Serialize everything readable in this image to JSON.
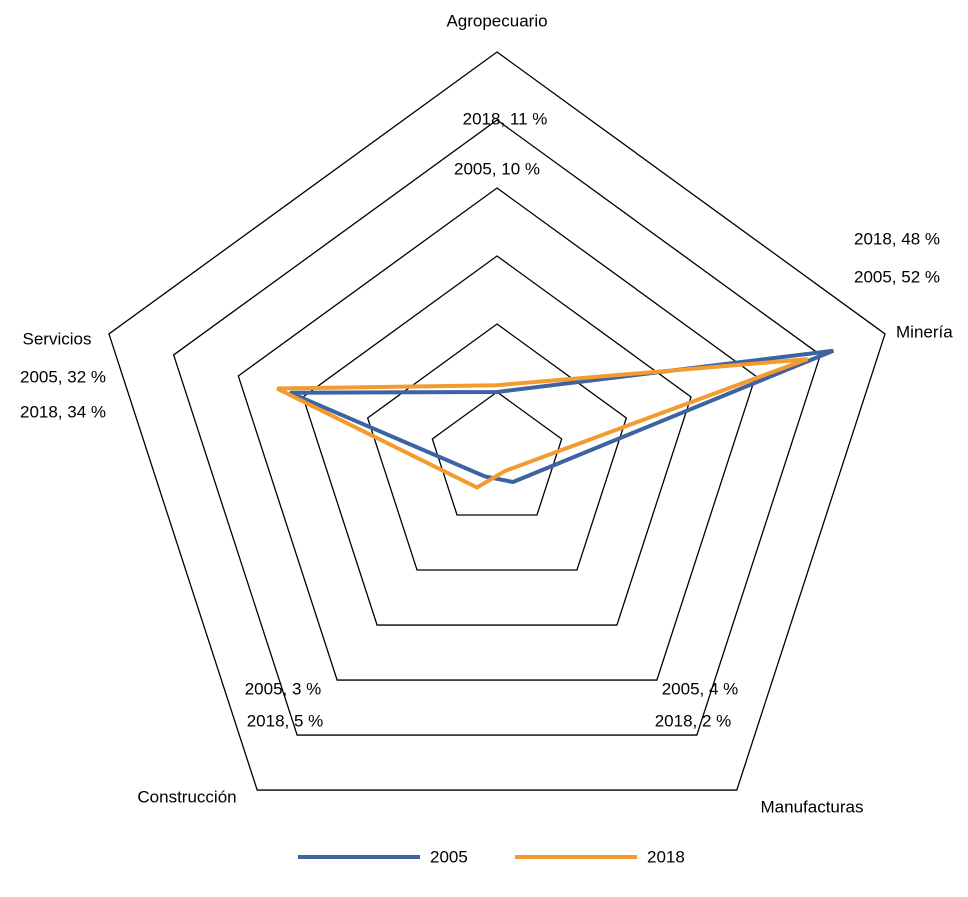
{
  "chart_data": {
    "type": "radar",
    "categories": [
      "Agropecuario",
      "Minería",
      "Manufacturas",
      "Construcción",
      "Servicios"
    ],
    "series": [
      {
        "name": "2005",
        "color": "#3d63a0",
        "values": [
          10,
          52,
          4,
          3,
          32
        ],
        "value_labels": [
          "2005, 10 %",
          "2005, 52 %",
          "2005, 4 %",
          "2005, 3 %",
          "2005, 32 %"
        ]
      },
      {
        "name": "2018",
        "color": "#f39b2f",
        "values": [
          11,
          48,
          2,
          5,
          34
        ],
        "value_labels": [
          "2018, 11 %",
          "2018, 48 %",
          "2018, 2 %",
          "2018, 5 %",
          "2018, 34 %"
        ]
      }
    ],
    "ylim": [
      0,
      60
    ],
    "yticks": [
      0,
      10,
      20,
      30,
      40,
      50,
      60
    ],
    "grid": true,
    "legend": "bottom"
  }
}
